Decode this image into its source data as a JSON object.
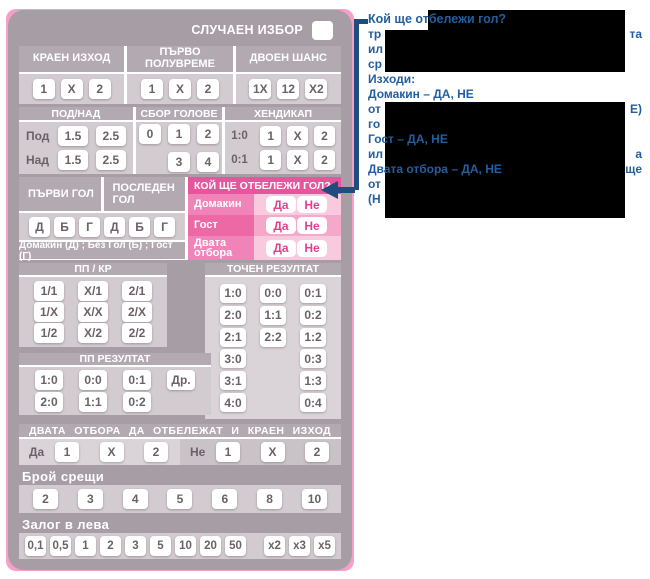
{
  "random_label": "СЛУЧАЕН ИЗБОР",
  "markets": {
    "final": {
      "title": "КРАЕН ИЗХОД",
      "options": [
        "1",
        "X",
        "2"
      ]
    },
    "first_half": {
      "title": "ПЪРВО ПОЛУВРЕМЕ",
      "options": [
        "1",
        "X",
        "2"
      ]
    },
    "double_chance": {
      "title": "ДВОЕН ШАНС",
      "options": [
        "1X",
        "12",
        "X2"
      ]
    },
    "under_over": {
      "title": "ПОД/НАД",
      "rows": [
        {
          "label": "Под",
          "options": [
            "1.5",
            "2.5"
          ]
        },
        {
          "label": "Над",
          "options": [
            "1.5",
            "2.5"
          ]
        }
      ]
    },
    "total_goals": {
      "title": "СБОР ГОЛОВЕ",
      "grid": [
        "0",
        "1",
        "2",
        "",
        "3",
        "4"
      ]
    },
    "handicap": {
      "title": "ХЕНДИКАП",
      "rows": [
        {
          "label": "1:0",
          "options": [
            "1",
            "X",
            "2"
          ]
        },
        {
          "label": "0:1",
          "options": [
            "1",
            "X",
            "2"
          ]
        }
      ]
    },
    "first_goal_title": "ПЪРВИ ГОЛ",
    "last_goal_title": "ПОСЛЕДЕН ГОЛ",
    "goal_letters": [
      "Д",
      "Б",
      "Г",
      "Д",
      "Б",
      "Г"
    ],
    "goal_caption": "Домакин (Д) ; Без Гол (Б) ; Гост (Г)",
    "who_scores": {
      "title": "КОЙ ЩЕ ОТБЕЛЕЖИ ГОЛ?",
      "rows": [
        {
          "label": "Домакин",
          "yes": "Да",
          "no": "Не"
        },
        {
          "label": "Гост",
          "yes": "Да",
          "no": "Не"
        },
        {
          "label": "Двата отбора",
          "yes": "Да",
          "no": "Не"
        }
      ]
    },
    "ht_ft": {
      "title": "ПП / КР",
      "grid": [
        "1/1",
        "X/1",
        "2/1",
        "1/X",
        "X/X",
        "2/X",
        "1/2",
        "X/2",
        "2/2"
      ]
    },
    "exact_result": {
      "title": "ТОЧЕН РЕЗУЛТАТ",
      "grid": [
        "1:0",
        "0:0",
        "0:1",
        "2:0",
        "1:1",
        "0:2",
        "2:1",
        "2:2",
        "1:2",
        "3:0",
        "",
        "0:3",
        "3:1",
        "",
        "1:3",
        "4:0",
        "",
        "0:4"
      ]
    },
    "ht_result": {
      "title": "ПП РЕЗУЛТАТ",
      "row1": [
        "1:0",
        "0:0",
        "0:1",
        "Др."
      ],
      "row2": [
        "2:0",
        "1:1",
        "0:2"
      ]
    },
    "btts_final": {
      "title": "ДВАТА ОТБОРА ДА ОТБЕЛЕЖАТ И КРАЕН ИЗХОД",
      "yes_label": "Да",
      "no_label": "Не",
      "yes_options": [
        "1",
        "X",
        "2"
      ],
      "no_options": [
        "1",
        "X",
        "2"
      ]
    },
    "matches": {
      "title": "Брой срещи",
      "options": [
        "2",
        "3",
        "4",
        "5",
        "6",
        "8",
        "10"
      ]
    },
    "stake": {
      "title": "Залог в лева",
      "options": [
        "0,1",
        "0,5",
        "1",
        "2",
        "3",
        "5",
        "10",
        "20",
        "50"
      ],
      "multipliers": [
        "x2",
        "x3",
        "x5"
      ]
    }
  },
  "annotation": {
    "title": "Кой ще отбележи гол?",
    "lines": [
      {
        "left": "тр",
        "right": "та"
      },
      {
        "left": "ил",
        "right": ""
      },
      {
        "left": "ср",
        "right": ""
      },
      {
        "left": "Изходи:",
        "right": ""
      },
      {
        "left": "Домакин –  ДА, НЕ",
        "right": ""
      },
      {
        "left": "от",
        "right": "Е)"
      },
      {
        "left": "го",
        "right": ""
      },
      {
        "left": "Гост – ДА, НЕ",
        "right": ""
      },
      {
        "left": "ил",
        "right": "а"
      },
      {
        "left": "Двата отбора – ДА, НЕ",
        "right": "ще"
      },
      {
        "left": "от",
        "right": ""
      },
      {
        "left": "(Н",
        "right": ""
      }
    ]
  },
  "colors": {
    "slip_background": "#a79da5",
    "pink_frame": "#f59fc9",
    "pink_header": "#e7569d",
    "annotation_blue": "#235e9e",
    "bracket_blue": "#1f4e7c"
  }
}
